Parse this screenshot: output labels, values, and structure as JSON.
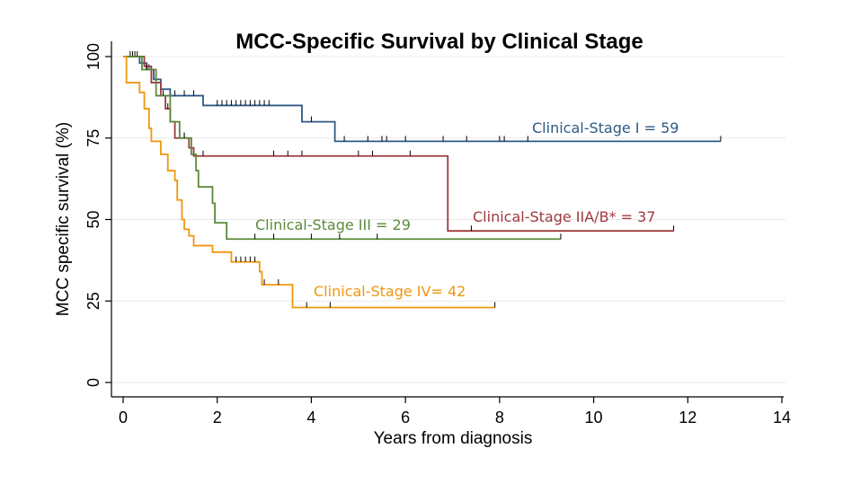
{
  "chart_data": {
    "type": "line",
    "title": "MCC-Specific Survival by Clinical Stage",
    "xlabel": "Years from diagnosis",
    "ylabel": "MCC specific survival (%)",
    "xlim": [
      0,
      14
    ],
    "ylim": [
      0,
      100
    ],
    "xticks": [
      0,
      2,
      4,
      6,
      8,
      10,
      12,
      14
    ],
    "yticks": [
      0,
      25,
      50,
      75,
      100
    ],
    "grid": true,
    "legend": "none",
    "series": [
      {
        "name": "Clinical-Stage I = 59",
        "color": "#2e5985",
        "steps": [
          [
            0,
            100
          ],
          [
            0.35,
            98
          ],
          [
            0.5,
            96
          ],
          [
            0.65,
            93
          ],
          [
            0.8,
            90
          ],
          [
            1.0,
            88
          ],
          [
            1.7,
            85
          ],
          [
            3.8,
            80
          ],
          [
            4.5,
            74
          ],
          [
            12.7,
            74
          ]
        ],
        "censored": [
          0.15,
          0.25,
          0.4,
          0.55,
          1.1,
          1.3,
          1.5,
          2.0,
          2.1,
          2.2,
          2.3,
          2.4,
          2.5,
          2.6,
          2.7,
          2.8,
          2.9,
          3.0,
          3.1,
          4.0,
          4.7,
          5.2,
          5.5,
          5.6,
          6.0,
          6.8,
          7.3,
          8.0,
          8.1,
          8.6,
          12.7
        ]
      },
      {
        "name": "Clinical-Stage IIA/B* = 37",
        "color": "#9e3a3f",
        "steps": [
          [
            0,
            100
          ],
          [
            0.45,
            97
          ],
          [
            0.6,
            92
          ],
          [
            0.8,
            88
          ],
          [
            0.9,
            84
          ],
          [
            1.0,
            80
          ],
          [
            1.1,
            75
          ],
          [
            1.4,
            72
          ],
          [
            1.5,
            69.5
          ],
          [
            6.9,
            69.5
          ],
          [
            6.9,
            46.5
          ],
          [
            11.7,
            46.5
          ]
        ],
        "censored": [
          0.2,
          0.3,
          0.95,
          1.2,
          1.3,
          1.7,
          3.2,
          3.5,
          3.8,
          5.0,
          5.3,
          6.1,
          7.4,
          11.7
        ]
      },
      {
        "name": "Clinical-Stage III = 29",
        "color": "#5a8a3a",
        "steps": [
          [
            0,
            100
          ],
          [
            0.4,
            96
          ],
          [
            0.7,
            88
          ],
          [
            1.0,
            80
          ],
          [
            1.2,
            75
          ],
          [
            1.45,
            70
          ],
          [
            1.55,
            65
          ],
          [
            1.6,
            60
          ],
          [
            1.9,
            55
          ],
          [
            1.95,
            49
          ],
          [
            2.2,
            44
          ],
          [
            9.3,
            44
          ]
        ],
        "censored": [
          0.5,
          0.85,
          1.3,
          2.8,
          3.2,
          4.0,
          4.6,
          5.4,
          9.3
        ]
      },
      {
        "name": "Clinical-Stage IV= 42",
        "color": "#f0960e",
        "steps": [
          [
            0,
            100
          ],
          [
            0.07,
            92
          ],
          [
            0.35,
            89
          ],
          [
            0.45,
            84
          ],
          [
            0.55,
            78
          ],
          [
            0.6,
            74
          ],
          [
            0.8,
            70
          ],
          [
            0.95,
            65
          ],
          [
            1.1,
            62
          ],
          [
            1.15,
            56
          ],
          [
            1.25,
            50
          ],
          [
            1.3,
            47
          ],
          [
            1.4,
            45
          ],
          [
            1.5,
            42
          ],
          [
            1.9,
            40
          ],
          [
            2.3,
            37
          ],
          [
            2.9,
            34
          ],
          [
            2.95,
            30
          ],
          [
            3.6,
            30
          ],
          [
            3.6,
            23
          ],
          [
            7.9,
            23
          ]
        ],
        "censored": [
          2.4,
          2.5,
          2.6,
          2.7,
          2.8,
          3.0,
          3.3,
          3.9,
          4.4,
          7.9
        ]
      }
    ]
  }
}
